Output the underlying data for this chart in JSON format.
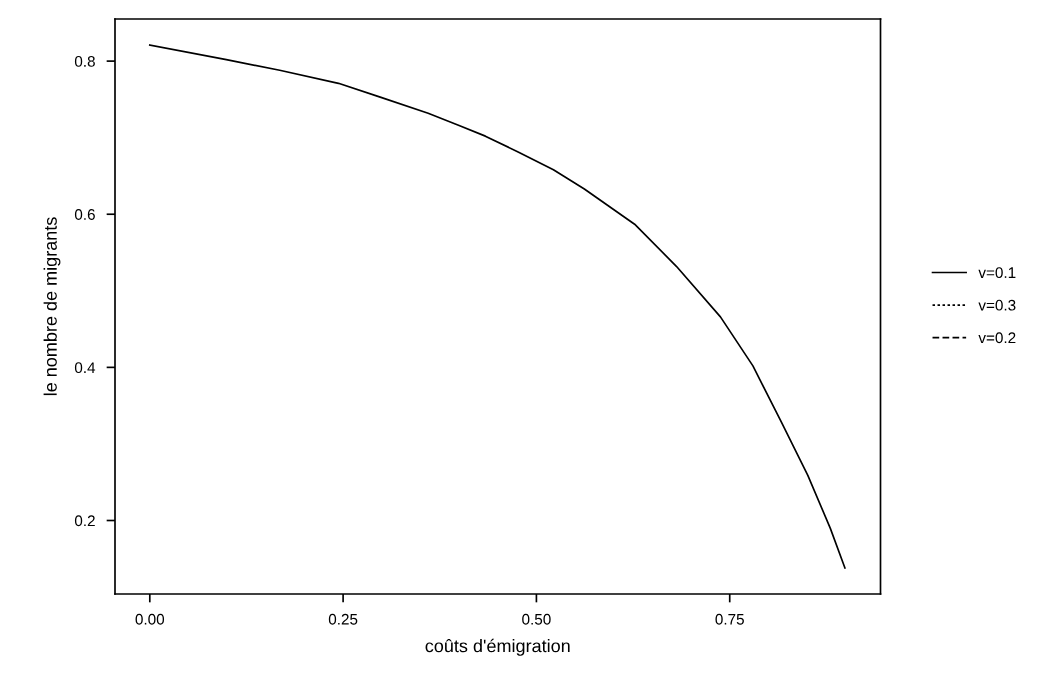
{
  "chart_data": {
    "type": "line",
    "xlabel": "coûts d'émigration",
    "ylabel": "le nombre de migrants",
    "x": [
      0,
      0.099,
      0.168,
      0.244,
      0.298,
      0.36,
      0.4,
      0.434,
      0.477,
      0.522,
      0.562,
      0.627,
      0.681,
      0.738,
      0.78,
      0.817,
      0.851,
      0.88,
      0.899
    ],
    "series": [
      {
        "name": "v=0.1",
        "color": "#000000",
        "line_style": "solid",
        "values": [
          0.821,
          0.802,
          0.788,
          0.771,
          0.753,
          0.732,
          0.716,
          0.702,
          0.681,
          0.658,
          0.633,
          0.587,
          0.532,
          0.466,
          0.402,
          0.328,
          0.259,
          0.19,
          0.138
        ]
      },
      {
        "name": "v=0.3",
        "color": "#000000",
        "line_style": "dotted",
        "values": [
          null,
          null,
          null,
          null,
          null,
          null,
          null,
          null,
          null,
          null,
          null,
          null,
          null,
          null,
          null,
          null,
          null,
          null,
          null
        ]
      },
      {
        "name": "v=0.2",
        "color": "#000000",
        "line_style": "dashed",
        "values": [
          null,
          null,
          null,
          null,
          null,
          null,
          null,
          null,
          null,
          null,
          null,
          null,
          null,
          null,
          null,
          null,
          null,
          null,
          null
        ]
      }
    ],
    "xlim": [
      -0.045,
      0.945
    ],
    "xticks": [
      {
        "value": 0,
        "label": "0.00"
      },
      0.25,
      {
        "value": 0.5,
        "label": "0.50"
      },
      0.75
    ],
    "ylim": [
      0.104,
      0.855
    ],
    "yticks": [
      0.2,
      0.4,
      0.6,
      0.8
    ],
    "grid": false,
    "legend": "right"
  }
}
